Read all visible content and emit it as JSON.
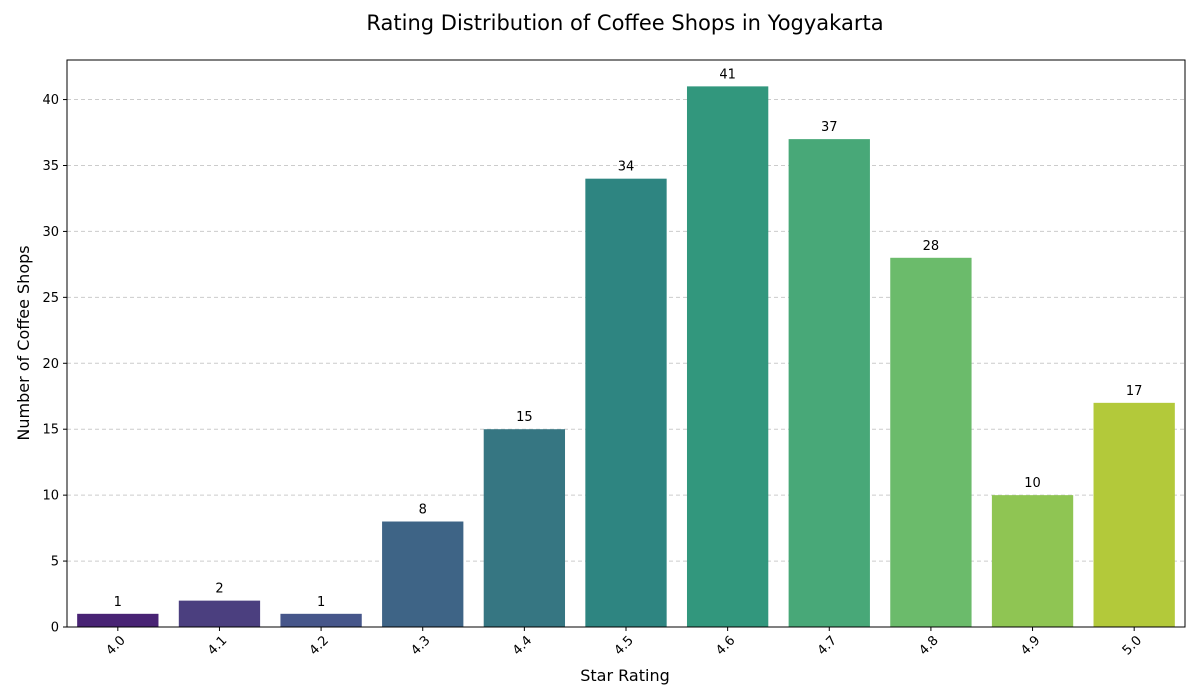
{
  "chart_data": {
    "type": "bar",
    "title": "Rating Distribution of Coffee Shops in Yogyakarta",
    "xlabel": "Star Rating",
    "ylabel": "Number of Coffee Shops",
    "categories": [
      "4.0",
      "4.1",
      "4.2",
      "4.3",
      "4.4",
      "4.5",
      "4.6",
      "4.7",
      "4.8",
      "4.9",
      "5.0"
    ],
    "values": [
      1,
      2,
      1,
      8,
      15,
      34,
      41,
      37,
      28,
      10,
      17
    ],
    "colors": [
      "#482374",
      "#4b3f7f",
      "#46568a",
      "#3e6486",
      "#367682",
      "#2e8581",
      "#32977d",
      "#48a878",
      "#6bbb6b",
      "#8fc553",
      "#b3c93a"
    ],
    "ylim": [
      0,
      43
    ],
    "yticks": [
      0,
      5,
      10,
      15,
      20,
      25,
      30,
      35,
      40
    ],
    "grid": "y-dashed",
    "legend": "none"
  }
}
